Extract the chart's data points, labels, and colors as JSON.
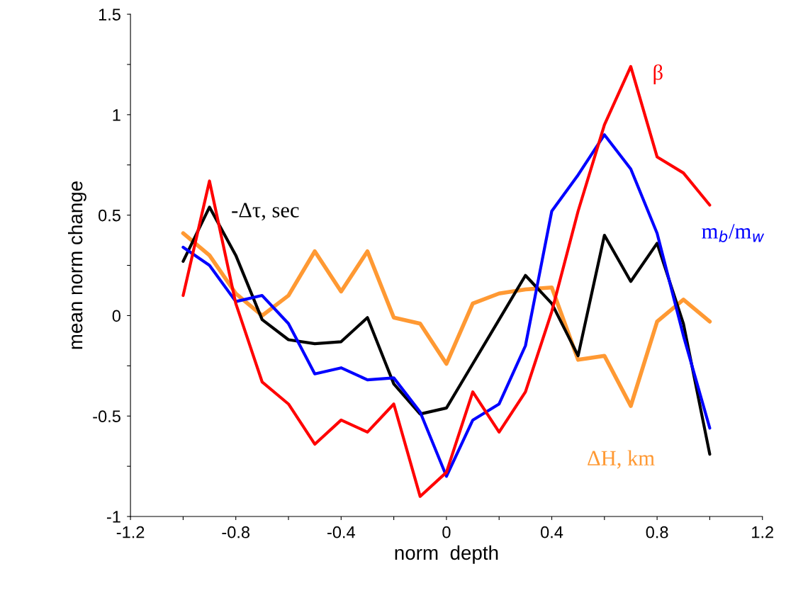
{
  "chart_data": {
    "type": "line",
    "xlabel": "norm  depth",
    "ylabel": "mean norm change",
    "x": [
      -1.0,
      -0.9,
      -0.8,
      -0.7,
      -0.6,
      -0.5,
      -0.4,
      -0.3,
      -0.2,
      -0.1,
      0.0,
      0.1,
      0.2,
      0.3,
      0.4,
      0.5,
      0.6,
      0.7,
      0.8,
      0.9,
      1.0
    ],
    "series": [
      {
        "name": "ΔH, km",
        "color": "#ff9933",
        "values": [
          0.41,
          0.3,
          0.11,
          0.0,
          0.1,
          0.32,
          0.12,
          0.32,
          -0.01,
          -0.04,
          -0.24,
          0.06,
          0.11,
          0.13,
          0.14,
          -0.22,
          -0.2,
          -0.45,
          -0.03,
          0.08,
          -0.03
        ]
      },
      {
        "name": "-Δτ, sec",
        "color": "#000000",
        "values": [
          0.27,
          0.54,
          0.3,
          -0.02,
          -0.12,
          -0.14,
          -0.13,
          -0.01,
          -0.34,
          -0.49,
          -0.46,
          -0.24,
          -0.02,
          0.2,
          0.06,
          -0.2,
          0.4,
          0.17,
          0.36,
          -0.04,
          -0.69
        ]
      },
      {
        "name": "m$_{b}$/m$_{w}$",
        "color": "#0000ff",
        "values": [
          0.34,
          0.25,
          0.07,
          0.1,
          -0.04,
          -0.29,
          -0.26,
          -0.32,
          -0.31,
          -0.48,
          -0.8,
          -0.52,
          -0.44,
          -0.15,
          0.52,
          0.7,
          0.9,
          0.73,
          0.41,
          -0.1,
          -0.56
        ]
      },
      {
        "name": "β",
        "color": "#ff0000",
        "values": [
          0.1,
          0.67,
          0.06,
          -0.33,
          -0.44,
          -0.64,
          -0.52,
          -0.58,
          -0.44,
          -0.9,
          -0.78,
          -0.38,
          -0.58,
          -0.38,
          0.02,
          0.52,
          0.95,
          1.24,
          0.79,
          0.71,
          0.55
        ]
      }
    ],
    "xlim": [
      -1.2,
      1.2
    ],
    "ylim": [
      -1,
      1.5
    ],
    "xticks": [
      -1.2,
      {
        "value": -1.0,
        "label": null
      },
      -0.8,
      {
        "value": -0.6,
        "label": null
      },
      -0.4,
      {
        "value": -0.2,
        "label": null
      },
      0,
      {
        "value": 0.2,
        "label": null
      },
      0.4,
      {
        "value": 0.6,
        "label": null
      },
      0.8,
      {
        "value": 1.0,
        "label": null
      },
      1.2
    ],
    "yticks": [
      -1,
      {
        "value": -0.75,
        "label": null
      },
      -0.5,
      {
        "value": -0.25,
        "label": null
      },
      0,
      {
        "value": 0.25,
        "label": null
      },
      0.5,
      {
        "value": 0.75,
        "label": null
      },
      1,
      {
        "value": 1.25,
        "label": null
      },
      1.5
    ],
    "grid": false,
    "legend": false,
    "marker": "none",
    "line_style": "solid"
  }
}
